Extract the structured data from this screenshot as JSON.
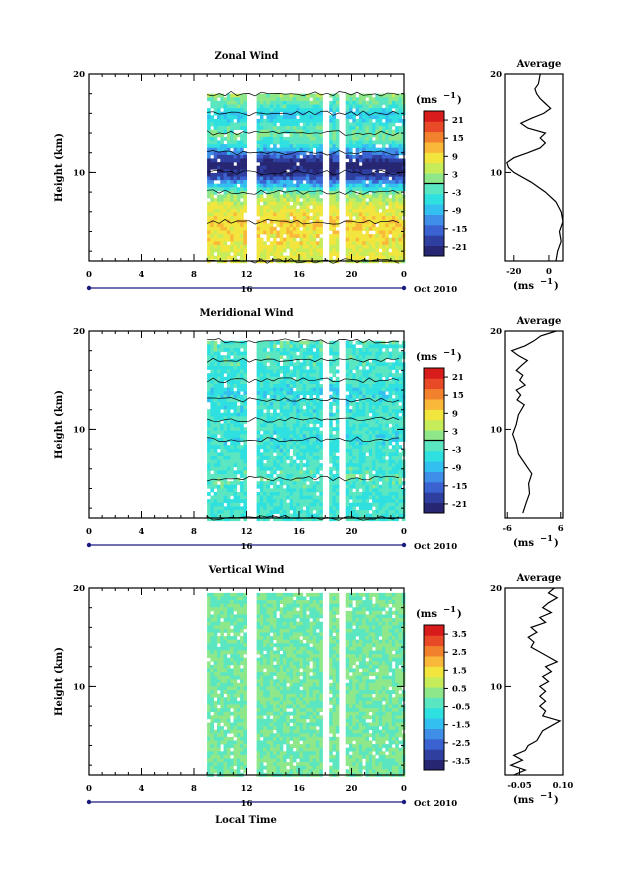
{
  "date_label": "Oct 2010",
  "day_label": "16",
  "common_xlabel": "Local Time",
  "unit_label": "(ms",
  "unit_sup": "−1",
  "unit_close": ")",
  "colors": {
    "frame": "#000000",
    "contour": "#000000",
    "gap": "#ffffff"
  },
  "colorscale": [
    "#262673",
    "#2f3fa0",
    "#3a62d0",
    "#3f8fe8",
    "#33c0f0",
    "#2fe0e0",
    "#5ae6c0",
    "#8ee88a",
    "#c6ec5a",
    "#f2e53e",
    "#f9b83a",
    "#f2812e",
    "#e84a28",
    "#d81c1c"
  ],
  "chart_data": [
    {
      "type": "heatmap",
      "title": "Zonal Wind",
      "ylabel": "Height (km)",
      "xlabel": "Local Time",
      "xlim": [
        0,
        24
      ],
      "ylim": [
        1,
        20
      ],
      "xticks": [
        "0",
        "4",
        "8",
        "12",
        "16",
        "20",
        "0"
      ],
      "yticks": [
        "10",
        "20"
      ],
      "colorbar": {
        "ticks": [
          "21",
          "15",
          "9",
          "3",
          "-3",
          "-9",
          "-15",
          "-21"
        ],
        "range": [
          -24,
          24
        ],
        "marker": 0
      },
      "data_x_range": [
        9,
        24
      ],
      "data_y_range": [
        1,
        18
      ],
      "gaps": [
        [
          11.8,
          12.6
        ],
        [
          17.8,
          18.3
        ],
        [
          19.0,
          19.5
        ]
      ],
      "profile": [
        {
          "h": 1,
          "v": 6
        },
        {
          "h": 3,
          "v": 8
        },
        {
          "h": 5,
          "v": 10
        },
        {
          "h": 7,
          "v": 6
        },
        {
          "h": 8,
          "v": 2
        },
        {
          "h": 9,
          "v": -10
        },
        {
          "h": 10,
          "v": -20
        },
        {
          "h": 11,
          "v": -24
        },
        {
          "h": 12,
          "v": -14
        },
        {
          "h": 13,
          "v": -4
        },
        {
          "h": 14,
          "v": 0
        },
        {
          "h": 15,
          "v": -3
        },
        {
          "h": 16,
          "v": -8
        },
        {
          "h": 17,
          "v": -2
        },
        {
          "h": 18,
          "v": 2
        }
      ],
      "average": {
        "title": "Average",
        "xlabel": "(ms",
        "xlabel_sup": "−1",
        "xlim": [
          -25,
          8
        ],
        "xticks": [
          {
            "v": -20,
            "l": "-20"
          },
          {
            "v": 0,
            "l": "0"
          }
        ],
        "ylim": [
          1,
          20
        ],
        "yticks": [
          "10",
          "20"
        ],
        "values": [
          {
            "h": 1.0,
            "v": 4
          },
          {
            "h": 2.0,
            "v": 5
          },
          {
            "h": 3.0,
            "v": 7
          },
          {
            "h": 4.0,
            "v": 6
          },
          {
            "h": 5.0,
            "v": 8
          },
          {
            "h": 6.0,
            "v": 7
          },
          {
            "h": 7.0,
            "v": 4
          },
          {
            "h": 8.0,
            "v": -2
          },
          {
            "h": 9.0,
            "v": -10
          },
          {
            "h": 10.0,
            "v": -20
          },
          {
            "h": 10.5,
            "v": -23
          },
          {
            "h": 11.0,
            "v": -24
          },
          {
            "h": 11.5,
            "v": -20
          },
          {
            "h": 12.0,
            "v": -12
          },
          {
            "h": 12.5,
            "v": -5
          },
          {
            "h": 13.0,
            "v": -2
          },
          {
            "h": 13.5,
            "v": -5
          },
          {
            "h": 14.0,
            "v": -2
          },
          {
            "h": 14.5,
            "v": -12
          },
          {
            "h": 15.0,
            "v": -16
          },
          {
            "h": 15.5,
            "v": -10
          },
          {
            "h": 16.0,
            "v": -3
          },
          {
            "h": 16.5,
            "v": 1
          },
          {
            "h": 17.0,
            "v": -2
          },
          {
            "h": 17.5,
            "v": -5
          },
          {
            "h": 18.0,
            "v": -7
          },
          {
            "h": 18.5,
            "v": -8
          },
          {
            "h": 19.0,
            "v": -6
          },
          {
            "h": 20.0,
            "v": -5
          }
        ]
      }
    },
    {
      "type": "heatmap",
      "title": "Meridional Wind",
      "ylabel": "Height (km)",
      "xlabel": "Local Time",
      "xlim": [
        0,
        24
      ],
      "ylim": [
        1,
        20
      ],
      "xticks": [
        "0",
        "4",
        "8",
        "12",
        "16",
        "20",
        "0"
      ],
      "yticks": [
        "10",
        "20"
      ],
      "colorbar": {
        "ticks": [
          "21",
          "15",
          "9",
          "3",
          "-3",
          "-9",
          "-15",
          "-21"
        ],
        "range": [
          -24,
          24
        ],
        "marker": 0
      },
      "data_x_range": [
        9,
        24
      ],
      "data_y_range": [
        1,
        19
      ],
      "gaps": [
        [
          11.8,
          12.6
        ],
        [
          17.8,
          18.3
        ],
        [
          19.0,
          19.5
        ]
      ],
      "profile": [
        {
          "h": 1,
          "v": -3
        },
        {
          "h": 3,
          "v": -4
        },
        {
          "h": 5,
          "v": -2
        },
        {
          "h": 7,
          "v": -3
        },
        {
          "h": 9,
          "v": -5
        },
        {
          "h": 10,
          "v": -4
        },
        {
          "h": 11,
          "v": -3
        },
        {
          "h": 12,
          "v": -5
        },
        {
          "h": 13,
          "v": -4
        },
        {
          "h": 14,
          "v": -6
        },
        {
          "h": 15,
          "v": -3
        },
        {
          "h": 16,
          "v": -4
        },
        {
          "h": 17,
          "v": -2
        },
        {
          "h": 18,
          "v": -3
        },
        {
          "h": 19,
          "v": -2
        }
      ],
      "average": {
        "title": "Average",
        "xlabel": "(ms",
        "xlabel_sup": "−1",
        "xlim": [
          -6.5,
          6.5
        ],
        "xticks": [
          {
            "v": -6,
            "l": "-6"
          },
          {
            "v": 6,
            "l": "6"
          }
        ],
        "ylim": [
          1,
          20
        ],
        "yticks": [
          "10",
          "20"
        ],
        "values": [
          {
            "h": 1.5,
            "v": -2.5
          },
          {
            "h": 2.5,
            "v": -1.8
          },
          {
            "h": 3.5,
            "v": -1.0
          },
          {
            "h": 4.5,
            "v": -1.2
          },
          {
            "h": 5.5,
            "v": -0.5
          },
          {
            "h": 6.5,
            "v": -2.0
          },
          {
            "h": 7.5,
            "v": -3.5
          },
          {
            "h": 8.5,
            "v": -4.0
          },
          {
            "h": 9.5,
            "v": -4.8
          },
          {
            "h": 10.5,
            "v": -4.0
          },
          {
            "h": 11.5,
            "v": -3.5
          },
          {
            "h": 12.5,
            "v": -2.2
          },
          {
            "h": 13.0,
            "v": -3.8
          },
          {
            "h": 13.5,
            "v": -3.0
          },
          {
            "h": 14.0,
            "v": -4.0
          },
          {
            "h": 14.5,
            "v": -2.0
          },
          {
            "h": 15.0,
            "v": -3.2
          },
          {
            "h": 15.5,
            "v": -2.5
          },
          {
            "h": 16.0,
            "v": -4.0
          },
          {
            "h": 16.5,
            "v": -2.8
          },
          {
            "h": 17.0,
            "v": -1.5
          },
          {
            "h": 17.5,
            "v": -3.5
          },
          {
            "h": 18.0,
            "v": -5.0
          },
          {
            "h": 18.5,
            "v": -2.0
          },
          {
            "h": 19.0,
            "v": 0.0
          },
          {
            "h": 19.5,
            "v": 1.5
          },
          {
            "h": 20.0,
            "v": 5.0
          }
        ]
      }
    },
    {
      "type": "heatmap",
      "title": "Vertical Wind",
      "ylabel": "Height (km)",
      "xlabel": "Local Time",
      "xlim": [
        0,
        24
      ],
      "ylim": [
        1,
        20
      ],
      "xticks": [
        "0",
        "4",
        "8",
        "12",
        "16",
        "20",
        "0"
      ],
      "yticks": [
        "10",
        "20"
      ],
      "colorbar": {
        "ticks": [
          "3.5",
          "2.5",
          "1.5",
          "0.5",
          "-0.5",
          "-1.5",
          "-2.5",
          "-3.5"
        ],
        "range": [
          -4,
          4
        ],
        "marker": null
      },
      "data_x_range": [
        9,
        24
      ],
      "data_y_range": [
        1,
        19.5
      ],
      "gaps": [
        [
          11.8,
          12.6
        ],
        [
          17.8,
          18.3
        ],
        [
          19.0,
          19.5
        ]
      ],
      "profile": [
        {
          "h": 1,
          "v": 0.05
        },
        {
          "h": 5,
          "v": 0.0
        },
        {
          "h": 10,
          "v": 0.05
        },
        {
          "h": 15,
          "v": -0.05
        },
        {
          "h": 19.5,
          "v": 0.0
        }
      ],
      "average": {
        "title": "Average",
        "xlabel": "(ms",
        "xlabel_sup": "−1",
        "xlim": [
          -0.1,
          0.1
        ],
        "xticks": [
          {
            "v": -0.05,
            "l": "-0.05"
          },
          {
            "v": 0.1,
            "l": "0.10"
          }
        ],
        "ylim": [
          1,
          20
        ],
        "yticks": [
          "10",
          "20"
        ],
        "values": [
          {
            "h": 1.0,
            "v": -0.07
          },
          {
            "h": 1.5,
            "v": -0.03
          },
          {
            "h": 2.0,
            "v": -0.08
          },
          {
            "h": 2.5,
            "v": -0.04
          },
          {
            "h": 3.0,
            "v": -0.07
          },
          {
            "h": 3.5,
            "v": -0.03
          },
          {
            "h": 4.0,
            "v": -0.02
          },
          {
            "h": 4.5,
            "v": 0.01
          },
          {
            "h": 5.0,
            "v": 0.02
          },
          {
            "h": 5.5,
            "v": 0.03
          },
          {
            "h": 6.0,
            "v": 0.06
          },
          {
            "h": 6.5,
            "v": 0.09
          },
          {
            "h": 7.0,
            "v": 0.03
          },
          {
            "h": 7.5,
            "v": 0.04
          },
          {
            "h": 8.0,
            "v": 0.02
          },
          {
            "h": 8.5,
            "v": 0.04
          },
          {
            "h": 9.0,
            "v": 0.02
          },
          {
            "h": 9.5,
            "v": 0.04
          },
          {
            "h": 10.0,
            "v": 0.02
          },
          {
            "h": 10.5,
            "v": 0.05
          },
          {
            "h": 11.0,
            "v": 0.03
          },
          {
            "h": 11.5,
            "v": 0.06
          },
          {
            "h": 12.0,
            "v": 0.04
          },
          {
            "h": 12.5,
            "v": 0.08
          },
          {
            "h": 13.0,
            "v": 0.05
          },
          {
            "h": 13.5,
            "v": 0.02
          },
          {
            "h": 14.0,
            "v": -0.01
          },
          {
            "h": 14.5,
            "v": 0.0
          },
          {
            "h": 15.0,
            "v": -0.02
          },
          {
            "h": 15.5,
            "v": 0.01
          },
          {
            "h": 16.0,
            "v": -0.01
          },
          {
            "h": 16.5,
            "v": 0.04
          },
          {
            "h": 17.0,
            "v": 0.02
          },
          {
            "h": 17.5,
            "v": 0.06
          },
          {
            "h": 18.0,
            "v": 0.03
          },
          {
            "h": 18.5,
            "v": 0.05
          },
          {
            "h": 19.0,
            "v": 0.08
          },
          {
            "h": 19.5,
            "v": 0.05
          },
          {
            "h": 20.0,
            "v": 0.07
          }
        ]
      }
    }
  ]
}
